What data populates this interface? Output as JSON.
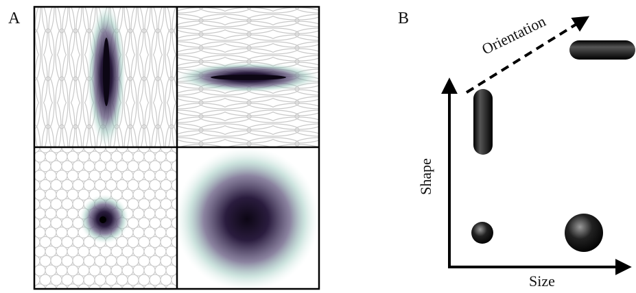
{
  "panel_a": {
    "label": "A"
  },
  "panel_b": {
    "label": "B",
    "orientation_label": "Orientation",
    "y_axis_label": "Shape",
    "x_axis_label": "Size"
  }
}
